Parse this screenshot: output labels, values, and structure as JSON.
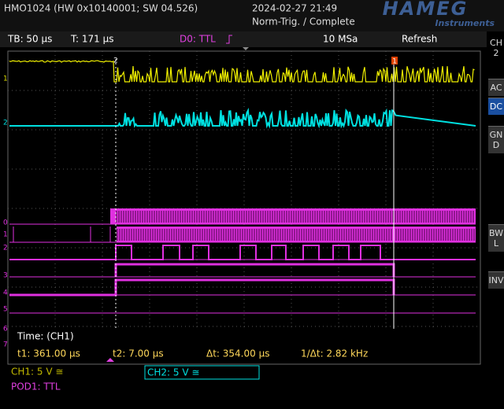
{
  "header": {
    "model": "HMO1024 (HW 0x10140001; SW 04.526)",
    "datetime": "2024-02-27 21:49",
    "trigger_status": "Norm-Trig. / Complete",
    "logo": "HAMEG",
    "logo_sub": "Instruments"
  },
  "status_bar": {
    "timebase": "TB: 50 µs",
    "trigger_pos": "T: 171 µs",
    "trigger_source": "D0: TTL",
    "sample_rate": "10 MSa",
    "mode": "Refresh"
  },
  "side_menu": {
    "channel": "CH2",
    "buttons": [
      "AC",
      "DC",
      "GND",
      "BWL",
      "INV"
    ]
  },
  "markers": {
    "ch1": "1",
    "ch2": "2",
    "trigger": "2",
    "cursor": "1",
    "digital": [
      "0",
      "1",
      "2",
      "3",
      "4",
      "5",
      "6",
      "7"
    ]
  },
  "readout": {
    "title": "Time: (CH1)",
    "t1": "t1: 361.00 µs",
    "t2": "t2: 7.00 µs",
    "delta": "Δt: 354.00 µs",
    "freq": "1/Δt: 2.82 kHz"
  },
  "footer": {
    "ch1": "CH1: 5 V ≅",
    "ch2": "CH2: 5 V ≅",
    "pod1": "POD1: TTL"
  }
}
